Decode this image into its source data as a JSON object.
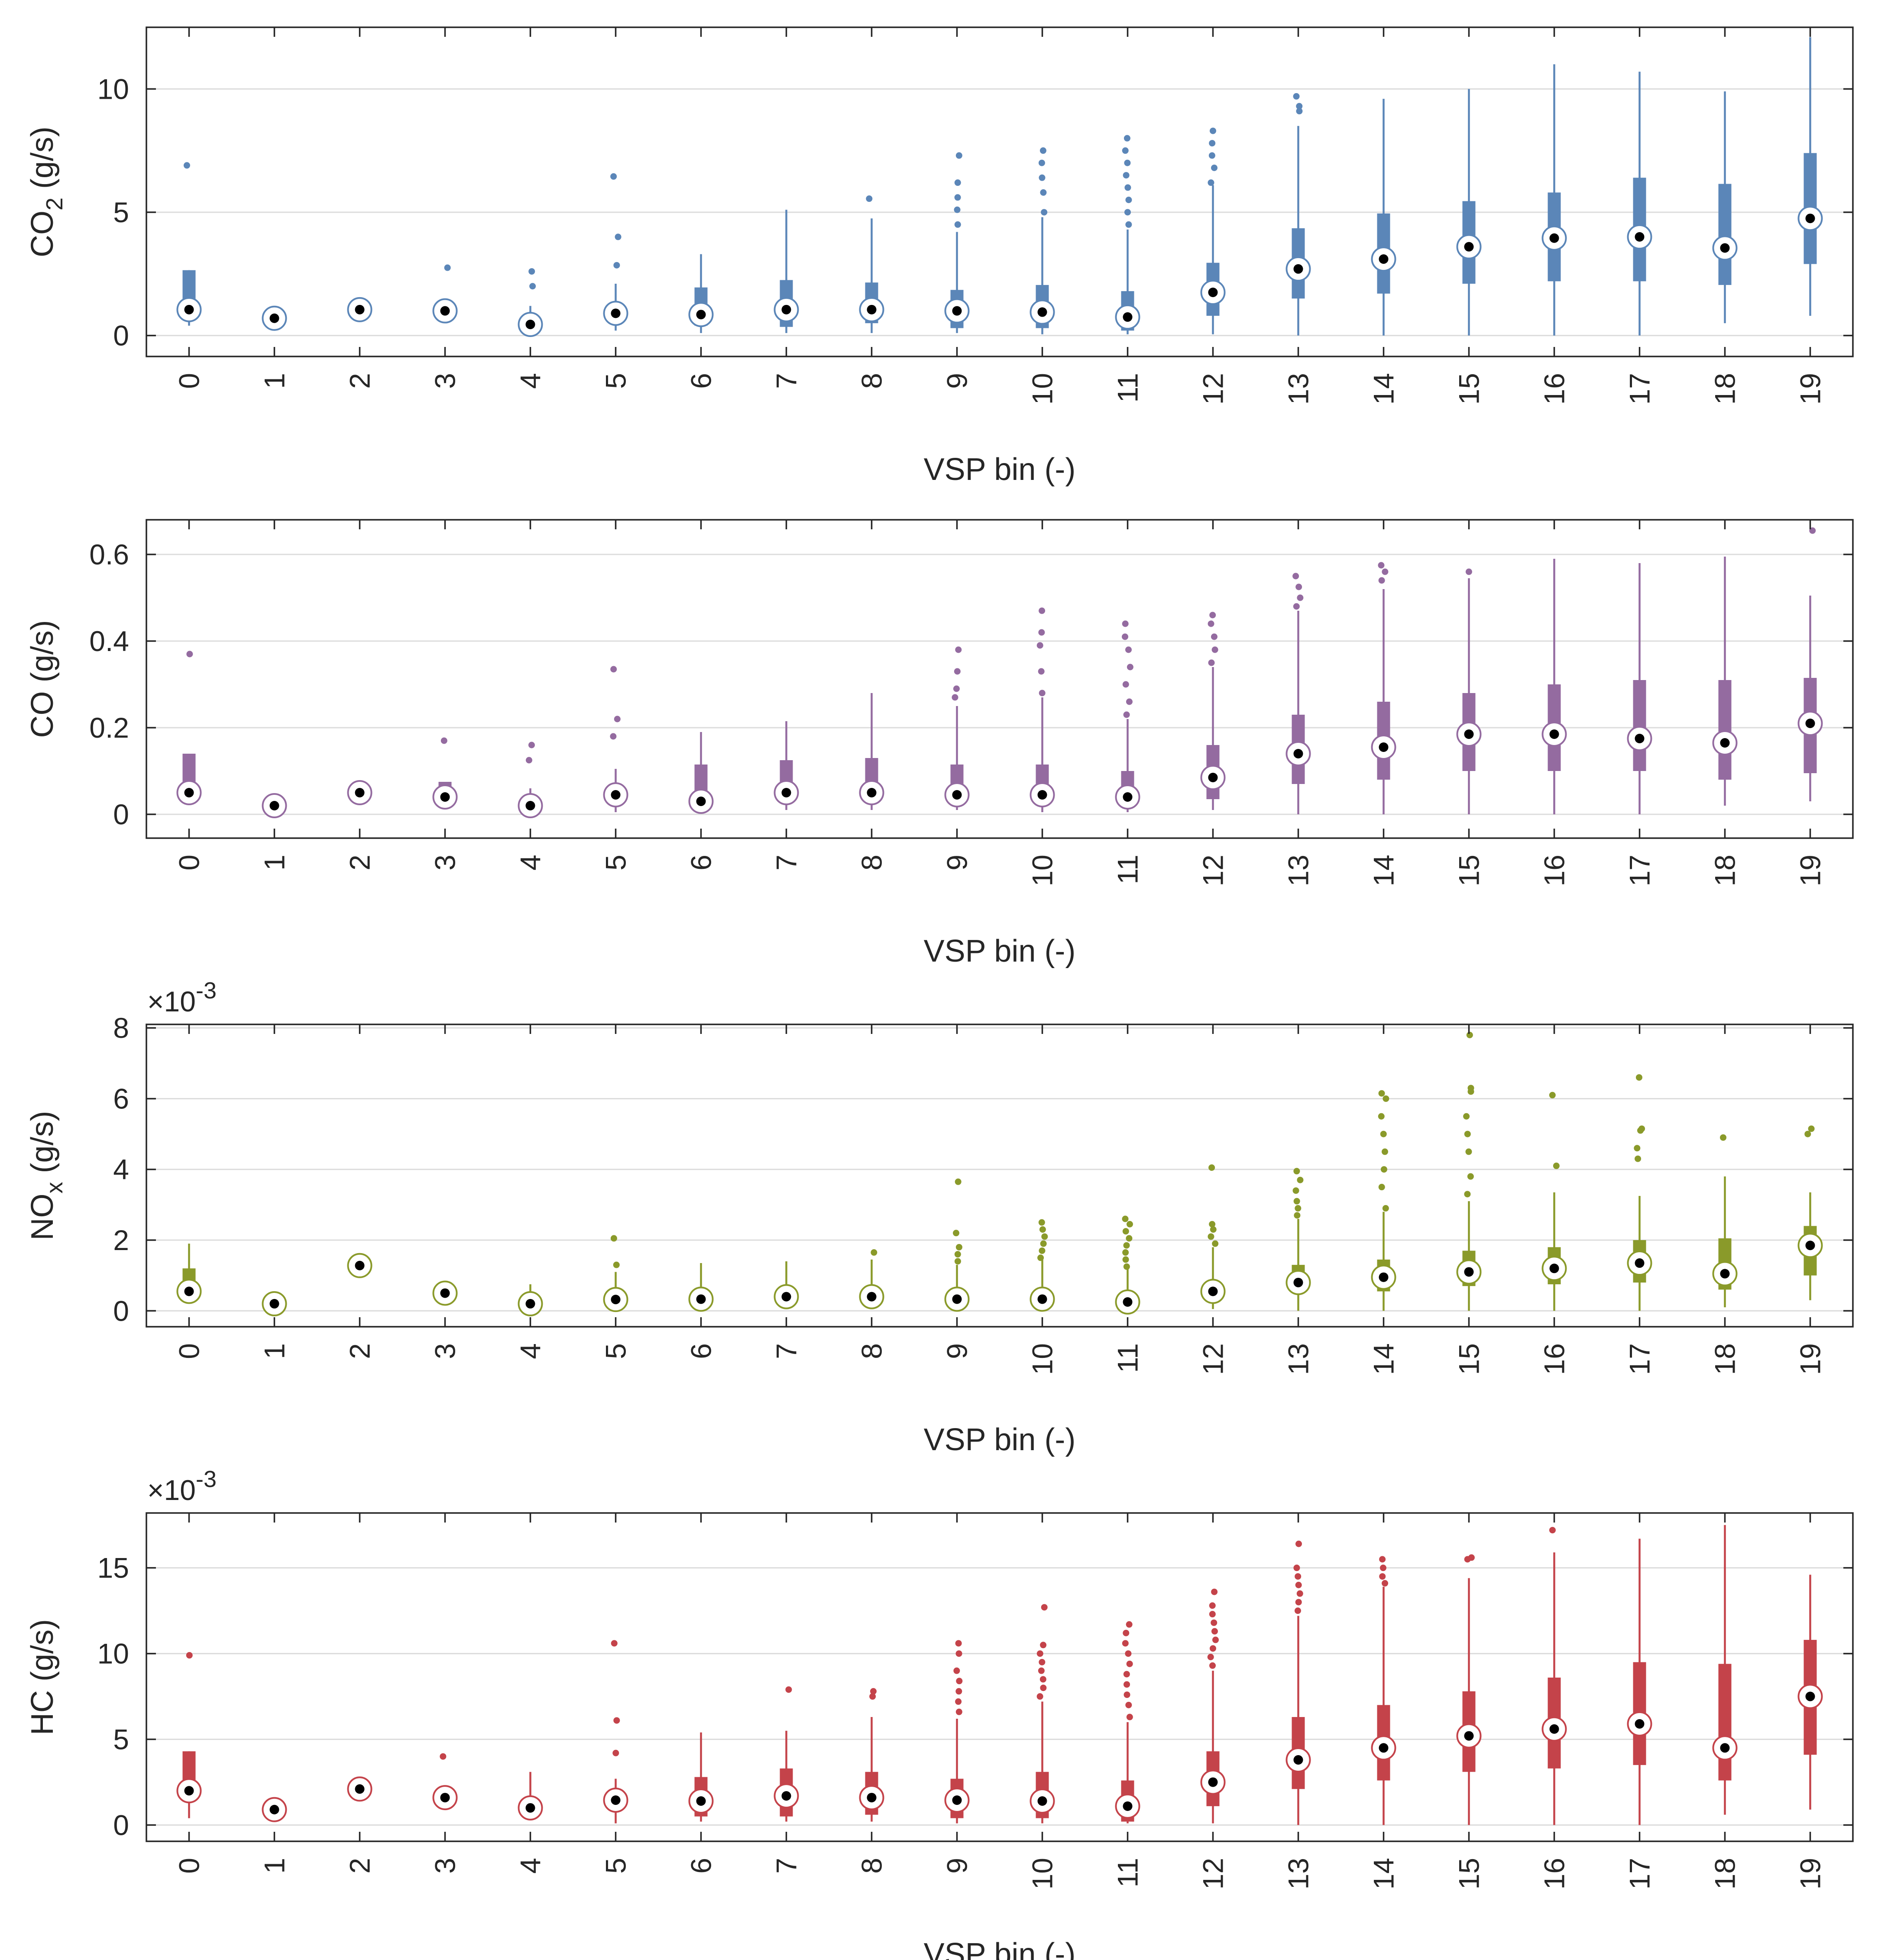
{
  "chart_data": [
    {
      "type": "box",
      "color": "#5b86b8",
      "xlabel": "VSP bin (-)",
      "ylabel_main": "CO",
      "ylabel_sub": "2",
      "ylabel_tail": " (g/s)",
      "multiplier": "",
      "ylim": [
        -0.85,
        12.5
      ],
      "yticks": [
        0,
        5,
        10
      ],
      "yticklabels": [
        "0",
        "5",
        "10"
      ],
      "categories": [
        "0",
        "1",
        "2",
        "3",
        "4",
        "5",
        "6",
        "7",
        "8",
        "9",
        "10",
        "11",
        "12",
        "13",
        "14",
        "15",
        "16",
        "17",
        "18",
        "19"
      ],
      "boxes": [
        {
          "wlo": 0.4,
          "q1": 1.0,
          "med": 1.05,
          "q3": 2.65,
          "whi": 2.65,
          "out": [
            6.9
          ]
        },
        {
          "wlo": 0.55,
          "q1": 0.65,
          "med": 0.7,
          "q3": 0.8,
          "whi": 0.85,
          "out": []
        },
        {
          "wlo": 0.95,
          "q1": 1.0,
          "med": 1.05,
          "q3": 1.1,
          "whi": 1.15,
          "out": []
        },
        {
          "wlo": 0.8,
          "q1": 0.9,
          "med": 1.0,
          "q3": 1.05,
          "whi": 1.1,
          "out": [
            2.75
          ]
        },
        {
          "wlo": 0.2,
          "q1": 0.3,
          "med": 0.45,
          "q3": 0.8,
          "whi": 1.2,
          "out": [
            2.0,
            2.6
          ]
        },
        {
          "wlo": 0.2,
          "q1": 0.55,
          "med": 0.9,
          "q3": 1.15,
          "whi": 2.1,
          "out": [
            2.85,
            4.0,
            6.45
          ]
        },
        {
          "wlo": 0.1,
          "q1": 0.4,
          "med": 0.85,
          "q3": 1.95,
          "whi": 3.3,
          "out": []
        },
        {
          "wlo": 0.1,
          "q1": 0.35,
          "med": 1.05,
          "q3": 2.25,
          "whi": 5.1,
          "out": []
        },
        {
          "wlo": 0.1,
          "q1": 0.5,
          "med": 1.05,
          "q3": 2.15,
          "whi": 4.75,
          "out": [
            5.55
          ]
        },
        {
          "wlo": 0.1,
          "q1": 0.3,
          "med": 1.0,
          "q3": 1.85,
          "whi": 4.2,
          "out": [
            4.5,
            5.1,
            5.6,
            6.2,
            7.3
          ]
        },
        {
          "wlo": 0.05,
          "q1": 0.3,
          "med": 0.95,
          "q3": 2.05,
          "whi": 4.8,
          "out": [
            5.0,
            5.8,
            6.4,
            7.0,
            7.5
          ]
        },
        {
          "wlo": 0.05,
          "q1": 0.2,
          "med": 0.75,
          "q3": 1.8,
          "whi": 4.3,
          "out": [
            4.5,
            5.0,
            5.5,
            6.0,
            6.5,
            7.0,
            7.5,
            8.0
          ]
        },
        {
          "wlo": 0.05,
          "q1": 0.8,
          "med": 1.75,
          "q3": 2.95,
          "whi": 6.1,
          "out": [
            6.2,
            6.8,
            7.3,
            7.8,
            8.3
          ]
        },
        {
          "wlo": 0.0,
          "q1": 1.5,
          "med": 2.7,
          "q3": 4.35,
          "whi": 8.5,
          "out": [
            9.1,
            9.3,
            9.7
          ]
        },
        {
          "wlo": 0.0,
          "q1": 1.7,
          "med": 3.1,
          "q3": 4.95,
          "whi": 9.6,
          "out": []
        },
        {
          "wlo": 0.0,
          "q1": 2.1,
          "med": 3.6,
          "q3": 5.45,
          "whi": 10.0,
          "out": []
        },
        {
          "wlo": 0.0,
          "q1": 2.2,
          "med": 3.95,
          "q3": 5.8,
          "whi": 11.0,
          "out": []
        },
        {
          "wlo": 0.0,
          "q1": 2.2,
          "med": 4.0,
          "q3": 6.4,
          "whi": 10.7,
          "out": []
        },
        {
          "wlo": 0.5,
          "q1": 2.05,
          "med": 3.55,
          "q3": 6.15,
          "whi": 9.9,
          "out": []
        },
        {
          "wlo": 0.8,
          "q1": 2.9,
          "med": 4.75,
          "q3": 7.4,
          "whi": 12.1,
          "out": []
        }
      ]
    },
    {
      "type": "box",
      "color": "#946ba0",
      "xlabel": "VSP bin (-)",
      "ylabel_main": "CO (g/s)",
      "ylabel_sub": "",
      "ylabel_tail": "",
      "multiplier": "",
      "ylim": [
        -0.055,
        0.68
      ],
      "yticks": [
        0,
        0.2,
        0.4,
        0.6
      ],
      "yticklabels": [
        "0",
        "0.2",
        "0.4",
        "0.6"
      ],
      "categories": [
        "0",
        "1",
        "2",
        "3",
        "4",
        "5",
        "6",
        "7",
        "8",
        "9",
        "10",
        "11",
        "12",
        "13",
        "14",
        "15",
        "16",
        "17",
        "18",
        "19"
      ],
      "boxes": [
        {
          "wlo": 0.03,
          "q1": 0.04,
          "med": 0.05,
          "q3": 0.14,
          "whi": 0.14,
          "out": [
            0.37
          ]
        },
        {
          "wlo": 0.01,
          "q1": 0.015,
          "med": 0.02,
          "q3": 0.025,
          "whi": 0.03,
          "out": []
        },
        {
          "wlo": 0.04,
          "q1": 0.045,
          "med": 0.05,
          "q3": 0.055,
          "whi": 0.06,
          "out": []
        },
        {
          "wlo": 0.02,
          "q1": 0.03,
          "med": 0.04,
          "q3": 0.075,
          "whi": 0.075,
          "out": [
            0.17
          ]
        },
        {
          "wlo": 0.005,
          "q1": 0.01,
          "med": 0.02,
          "q3": 0.03,
          "whi": 0.06,
          "out": [
            0.125,
            0.16
          ]
        },
        {
          "wlo": 0.005,
          "q1": 0.025,
          "med": 0.045,
          "q3": 0.07,
          "whi": 0.105,
          "out": [
            0.18,
            0.22,
            0.335
          ]
        },
        {
          "wlo": 0.005,
          "q1": 0.015,
          "med": 0.03,
          "q3": 0.115,
          "whi": 0.19,
          "out": []
        },
        {
          "wlo": 0.01,
          "q1": 0.025,
          "med": 0.05,
          "q3": 0.125,
          "whi": 0.215,
          "out": []
        },
        {
          "wlo": 0.01,
          "q1": 0.025,
          "med": 0.05,
          "q3": 0.13,
          "whi": 0.28,
          "out": []
        },
        {
          "wlo": 0.01,
          "q1": 0.02,
          "med": 0.045,
          "q3": 0.115,
          "whi": 0.25,
          "out": [
            0.27,
            0.29,
            0.33,
            0.38
          ]
        },
        {
          "wlo": 0.005,
          "q1": 0.02,
          "med": 0.045,
          "q3": 0.115,
          "whi": 0.27,
          "out": [
            0.28,
            0.33,
            0.39,
            0.42,
            0.47
          ]
        },
        {
          "wlo": 0.005,
          "q1": 0.015,
          "med": 0.04,
          "q3": 0.1,
          "whi": 0.22,
          "out": [
            0.23,
            0.26,
            0.3,
            0.34,
            0.38,
            0.41,
            0.44
          ]
        },
        {
          "wlo": 0.01,
          "q1": 0.035,
          "med": 0.085,
          "q3": 0.16,
          "whi": 0.34,
          "out": [
            0.35,
            0.38,
            0.41,
            0.44,
            0.46
          ]
        },
        {
          "wlo": 0.0,
          "q1": 0.07,
          "med": 0.14,
          "q3": 0.23,
          "whi": 0.47,
          "out": [
            0.48,
            0.5,
            0.525,
            0.55
          ]
        },
        {
          "wlo": 0.0,
          "q1": 0.08,
          "med": 0.155,
          "q3": 0.26,
          "whi": 0.52,
          "out": [
            0.54,
            0.56,
            0.575
          ]
        },
        {
          "wlo": 0.0,
          "q1": 0.1,
          "med": 0.185,
          "q3": 0.28,
          "whi": 0.545,
          "out": [
            0.56
          ]
        },
        {
          "wlo": 0.0,
          "q1": 0.1,
          "med": 0.185,
          "q3": 0.3,
          "whi": 0.59,
          "out": []
        },
        {
          "wlo": 0.0,
          "q1": 0.1,
          "med": 0.175,
          "q3": 0.31,
          "whi": 0.58,
          "out": []
        },
        {
          "wlo": 0.02,
          "q1": 0.08,
          "med": 0.165,
          "q3": 0.31,
          "whi": 0.595,
          "out": []
        },
        {
          "wlo": 0.03,
          "q1": 0.095,
          "med": 0.21,
          "q3": 0.315,
          "whi": 0.505,
          "out": [
            0.655
          ]
        }
      ]
    },
    {
      "type": "box",
      "color": "#8a9a2a",
      "xlabel": "VSP bin (-)",
      "ylabel_main": "NO",
      "ylabel_sub": "x",
      "ylabel_tail": " (g/s)",
      "multiplier": "×10",
      "multiplier_exp": "-3",
      "ylim": [
        -0.45,
        8.1
      ],
      "yticks": [
        0,
        2,
        4,
        6,
        8
      ],
      "yticklabels": [
        "0",
        "2",
        "4",
        "6",
        "8"
      ],
      "categories": [
        "0",
        "1",
        "2",
        "3",
        "4",
        "5",
        "6",
        "7",
        "8",
        "9",
        "10",
        "11",
        "12",
        "13",
        "14",
        "15",
        "16",
        "17",
        "18",
        "19"
      ],
      "boxes": [
        {
          "wlo": 0.2,
          "q1": 0.5,
          "med": 0.55,
          "q3": 1.2,
          "whi": 1.9,
          "out": []
        },
        {
          "wlo": 0.15,
          "q1": 0.18,
          "med": 0.2,
          "q3": 0.22,
          "whi": 0.25,
          "out": []
        },
        {
          "wlo": 1.2,
          "q1": 1.25,
          "med": 1.28,
          "q3": 1.3,
          "whi": 1.35,
          "out": []
        },
        {
          "wlo": 0.4,
          "q1": 0.45,
          "med": 0.5,
          "q3": 0.55,
          "whi": 0.6,
          "out": []
        },
        {
          "wlo": 0.1,
          "q1": 0.15,
          "med": 0.2,
          "q3": 0.25,
          "whi": 0.75,
          "out": []
        },
        {
          "wlo": 0.05,
          "q1": 0.25,
          "med": 0.32,
          "q3": 0.45,
          "whi": 1.1,
          "out": [
            1.3,
            2.05
          ]
        },
        {
          "wlo": 0.05,
          "q1": 0.25,
          "med": 0.33,
          "q3": 0.45,
          "whi": 1.35,
          "out": []
        },
        {
          "wlo": 0.05,
          "q1": 0.28,
          "med": 0.4,
          "q3": 0.5,
          "whi": 1.4,
          "out": []
        },
        {
          "wlo": 0.05,
          "q1": 0.28,
          "med": 0.4,
          "q3": 0.55,
          "whi": 1.45,
          "out": [
            1.65
          ]
        },
        {
          "wlo": 0.05,
          "q1": 0.2,
          "med": 0.33,
          "q3": 0.5,
          "whi": 1.3,
          "out": [
            1.4,
            1.6,
            1.8,
            2.2,
            3.65
          ]
        },
        {
          "wlo": 0.05,
          "q1": 0.2,
          "med": 0.33,
          "q3": 0.5,
          "whi": 1.45,
          "out": [
            1.5,
            1.7,
            1.9,
            2.1,
            2.3,
            2.5
          ]
        },
        {
          "wlo": 0.05,
          "q1": 0.15,
          "med": 0.25,
          "q3": 0.45,
          "whi": 1.2,
          "out": [
            1.25,
            1.45,
            1.65,
            1.85,
            2.05,
            2.25,
            2.45,
            2.6
          ]
        },
        {
          "wlo": 0.05,
          "q1": 0.3,
          "med": 0.55,
          "q3": 0.85,
          "whi": 1.8,
          "out": [
            1.9,
            2.1,
            2.3,
            2.45,
            4.05
          ]
        },
        {
          "wlo": 0.0,
          "q1": 0.5,
          "med": 0.8,
          "q3": 1.3,
          "whi": 2.6,
          "out": [
            2.7,
            2.9,
            3.1,
            3.4,
            3.7,
            3.95
          ]
        },
        {
          "wlo": 0.0,
          "q1": 0.55,
          "med": 0.95,
          "q3": 1.45,
          "whi": 2.8,
          "out": [
            2.9,
            3.5,
            4.0,
            4.5,
            5.0,
            5.5,
            6.0,
            6.15
          ]
        },
        {
          "wlo": 0.0,
          "q1": 0.7,
          "med": 1.1,
          "q3": 1.7,
          "whi": 3.1,
          "out": [
            3.3,
            3.8,
            4.5,
            5.0,
            5.5,
            6.2,
            6.3,
            7.8
          ]
        },
        {
          "wlo": 0.0,
          "q1": 0.75,
          "med": 1.2,
          "q3": 1.8,
          "whi": 3.35,
          "out": [
            4.1,
            6.1
          ]
        },
        {
          "wlo": 0.0,
          "q1": 0.8,
          "med": 1.35,
          "q3": 2.0,
          "whi": 3.25,
          "out": [
            4.3,
            4.6,
            5.1,
            5.15,
            6.6
          ]
        },
        {
          "wlo": 0.1,
          "q1": 0.6,
          "med": 1.05,
          "q3": 2.05,
          "whi": 3.8,
          "out": [
            4.9
          ]
        },
        {
          "wlo": 0.3,
          "q1": 1.0,
          "med": 1.85,
          "q3": 2.4,
          "whi": 3.35,
          "out": [
            5.0,
            5.15
          ]
        }
      ]
    },
    {
      "type": "box",
      "color": "#c4434a",
      "xlabel": "VSP bin (-)",
      "ylabel_main": "HC (g/s)",
      "ylabel_sub": "",
      "ylabel_tail": "",
      "multiplier": "×10",
      "multiplier_exp": "-3",
      "ylim": [
        -0.95,
        18.2
      ],
      "yticks": [
        0,
        5,
        10,
        15
      ],
      "yticklabels": [
        "0",
        "5",
        "10",
        "15"
      ],
      "categories": [
        "0",
        "1",
        "2",
        "3",
        "4",
        "5",
        "6",
        "7",
        "8",
        "9",
        "10",
        "11",
        "12",
        "13",
        "14",
        "15",
        "16",
        "17",
        "18",
        "19"
      ],
      "boxes": [
        {
          "wlo": 0.4,
          "q1": 1.5,
          "med": 2.0,
          "q3": 4.3,
          "whi": 4.3,
          "out": [
            9.9
          ]
        },
        {
          "wlo": 0.7,
          "q1": 0.8,
          "med": 0.9,
          "q3": 1.0,
          "whi": 1.1,
          "out": []
        },
        {
          "wlo": 1.9,
          "q1": 2.0,
          "med": 2.1,
          "q3": 2.2,
          "whi": 2.3,
          "out": []
        },
        {
          "wlo": 1.2,
          "q1": 1.4,
          "med": 1.6,
          "q3": 1.8,
          "whi": 2.2,
          "out": [
            4.0
          ]
        },
        {
          "wlo": 0.3,
          "q1": 0.6,
          "med": 1.0,
          "q3": 1.3,
          "whi": 3.1,
          "out": []
        },
        {
          "wlo": 0.1,
          "q1": 1.0,
          "med": 1.45,
          "q3": 1.8,
          "whi": 2.7,
          "out": [
            4.2,
            6.1,
            10.6
          ]
        },
        {
          "wlo": 0.2,
          "q1": 0.5,
          "med": 1.4,
          "q3": 2.8,
          "whi": 5.4,
          "out": []
        },
        {
          "wlo": 0.2,
          "q1": 0.5,
          "med": 1.7,
          "q3": 3.3,
          "whi": 5.5,
          "out": [
            7.9
          ]
        },
        {
          "wlo": 0.2,
          "q1": 0.6,
          "med": 1.6,
          "q3": 3.1,
          "whi": 6.3,
          "out": [
            7.5,
            7.8
          ]
        },
        {
          "wlo": 0.1,
          "q1": 0.4,
          "med": 1.45,
          "q3": 2.7,
          "whi": 6.2,
          "out": [
            6.6,
            7.2,
            7.8,
            8.4,
            9.0,
            10.0,
            10.6
          ]
        },
        {
          "wlo": 0.1,
          "q1": 0.4,
          "med": 1.4,
          "q3": 3.1,
          "whi": 7.2,
          "out": [
            7.5,
            8.0,
            8.5,
            9.0,
            9.5,
            10.0,
            10.5,
            12.7
          ]
        },
        {
          "wlo": 0.1,
          "q1": 0.2,
          "med": 1.1,
          "q3": 2.6,
          "whi": 6.0,
          "out": [
            6.3,
            7.0,
            7.6,
            8.2,
            8.8,
            9.4,
            10.0,
            10.6,
            11.2,
            11.7
          ]
        },
        {
          "wlo": 0.1,
          "q1": 1.1,
          "med": 2.5,
          "q3": 4.3,
          "whi": 9.0,
          "out": [
            9.3,
            9.8,
            10.3,
            10.8,
            11.3,
            11.8,
            12.3,
            12.8,
            13.6
          ]
        },
        {
          "wlo": 0.0,
          "q1": 2.1,
          "med": 3.8,
          "q3": 6.3,
          "whi": 12.2,
          "out": [
            12.5,
            13.0,
            13.5,
            14.0,
            14.5,
            15.0,
            16.4
          ]
        },
        {
          "wlo": 0.0,
          "q1": 2.6,
          "med": 4.5,
          "q3": 7.0,
          "whi": 13.9,
          "out": [
            14.1,
            14.5,
            15.0,
            15.5
          ]
        },
        {
          "wlo": 0.0,
          "q1": 3.1,
          "med": 5.2,
          "q3": 7.8,
          "whi": 14.4,
          "out": [
            15.5,
            15.6
          ]
        },
        {
          "wlo": 0.0,
          "q1": 3.3,
          "med": 5.6,
          "q3": 8.6,
          "whi": 15.9,
          "out": [
            17.2
          ]
        },
        {
          "wlo": 0.0,
          "q1": 3.5,
          "med": 5.9,
          "q3": 9.5,
          "whi": 16.7,
          "out": []
        },
        {
          "wlo": 0.6,
          "q1": 2.6,
          "med": 4.5,
          "q3": 9.4,
          "whi": 17.5,
          "out": []
        },
        {
          "wlo": 0.9,
          "q1": 4.1,
          "med": 7.5,
          "q3": 10.8,
          "whi": 14.6,
          "out": []
        }
      ]
    }
  ]
}
